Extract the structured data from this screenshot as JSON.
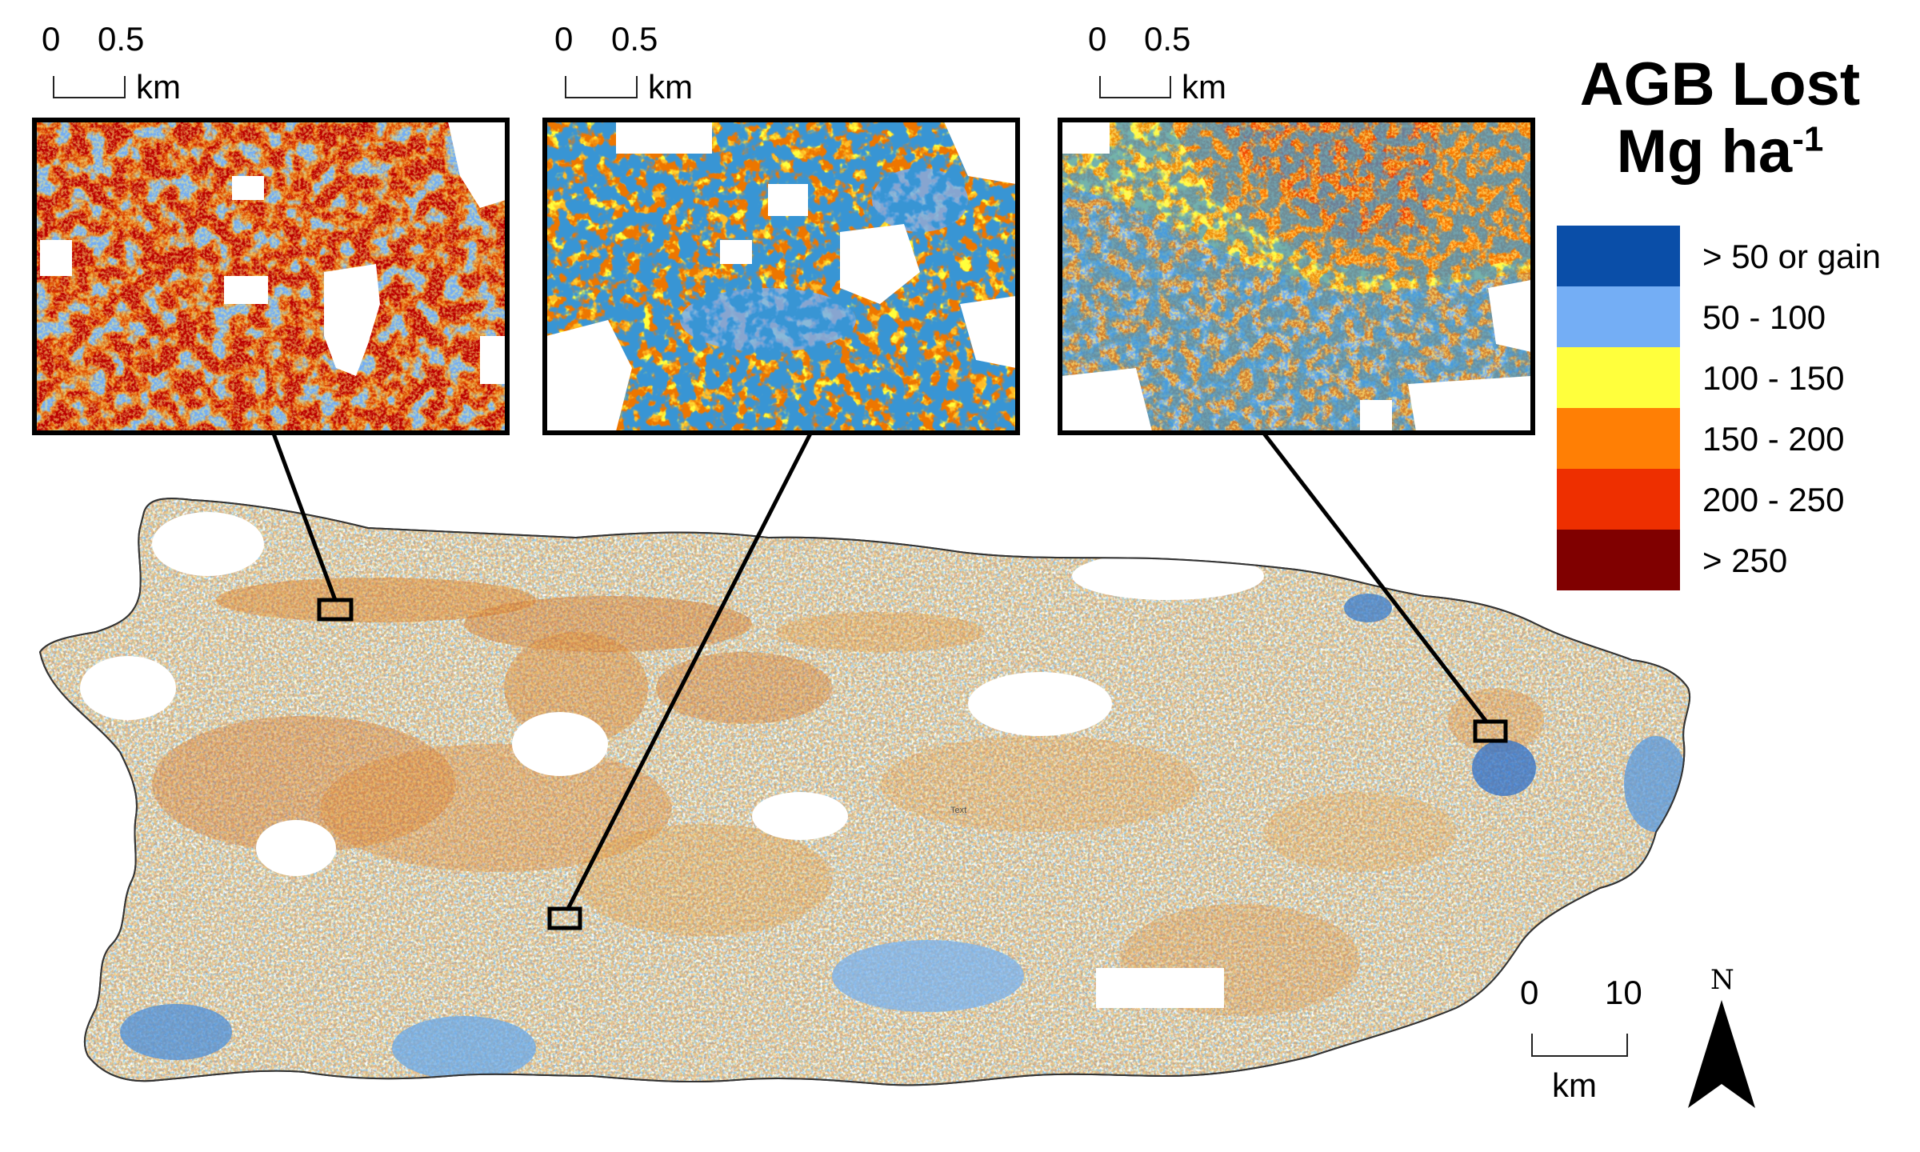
{
  "legend": {
    "title_line1": "AGB Lost",
    "title_line2": "Mg ha",
    "title_sup": "-1",
    "items": [
      {
        "label": "> 50 or gain",
        "color": "#0a4ea8"
      },
      {
        "label": "50 - 100",
        "color": "#74aef5"
      },
      {
        "label": "100 - 150",
        "color": "#ffff3c"
      },
      {
        "label": "150 - 200",
        "color": "#ff7f05"
      },
      {
        "label": "200 - 250",
        "color": "#ee2f00"
      },
      {
        "label": "> 250",
        "color": "#800000"
      }
    ]
  },
  "inset_scalebar": {
    "zero": "0",
    "half": "0.5",
    "unit": "km"
  },
  "main_scalebar": {
    "zero": "0",
    "ten": "10",
    "unit": "km"
  },
  "north_arrow": {
    "label": "N",
    "icon": "north-arrow-icon"
  },
  "map_text": "Text",
  "insets": [
    {
      "name": "inset-west",
      "dominant": "high loss (> 250, 200 - 250)"
    },
    {
      "name": "inset-central",
      "dominant": "mixed loss with gain patches"
    },
    {
      "name": "inset-east",
      "dominant": "150 - 250 north, 50 - 100 south"
    }
  ]
}
